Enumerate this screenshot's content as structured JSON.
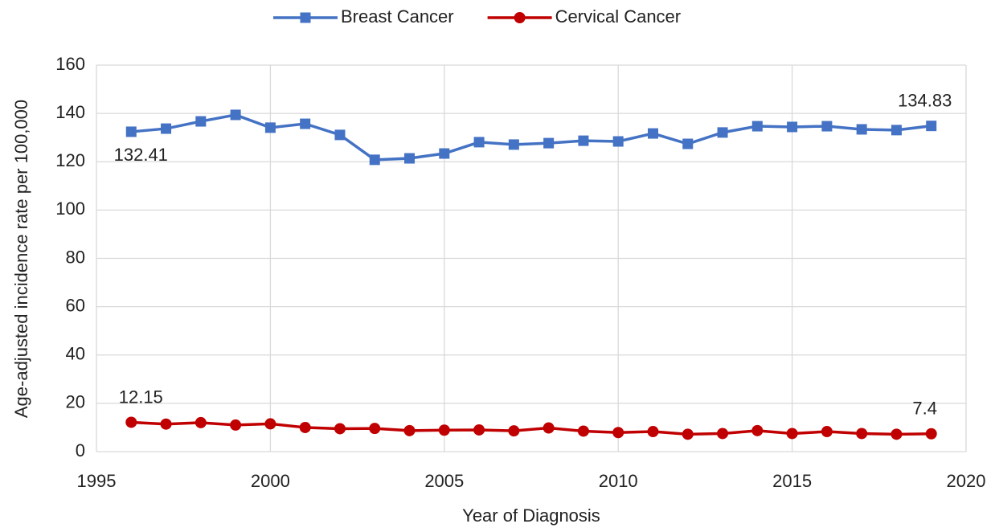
{
  "chart_data": {
    "type": "line",
    "x_label": "Year of Diagnosis",
    "y_label": "Age-adjusted incidence rate per 100,000",
    "x": [
      1996,
      1997,
      1998,
      1999,
      2000,
      2001,
      2002,
      2003,
      2004,
      2005,
      2006,
      2007,
      2008,
      2009,
      2010,
      2011,
      2012,
      2013,
      2014,
      2015,
      2016,
      2017,
      2018,
      2019
    ],
    "series": [
      {
        "name": "Breast Cancer",
        "color": "#4472c4",
        "marker": "square",
        "values": [
          132.41,
          133.7,
          136.7,
          139.4,
          134.1,
          135.7,
          131.1,
          120.8,
          121.4,
          123.4,
          128.1,
          127.1,
          127.7,
          128.7,
          128.4,
          131.7,
          127.4,
          132.1,
          134.7,
          134.4,
          134.7,
          133.4,
          133.1,
          134.83
        ]
      },
      {
        "name": "Cervical Cancer",
        "color": "#c00000",
        "marker": "circle",
        "values": [
          12.15,
          11.4,
          12.0,
          11.0,
          11.5,
          10.0,
          9.5,
          9.6,
          8.7,
          8.9,
          9.0,
          8.6,
          9.8,
          8.5,
          7.9,
          8.3,
          7.2,
          7.5,
          8.7,
          7.5,
          8.3,
          7.5,
          7.2,
          7.4
        ]
      }
    ],
    "xlim": [
      1995,
      2020
    ],
    "xticks": [
      1995,
      2000,
      2005,
      2010,
      2015,
      2020
    ],
    "ylim": [
      0,
      160
    ],
    "yticks": [
      0,
      20,
      40,
      60,
      80,
      100,
      120,
      140,
      160
    ],
    "grid": true,
    "legend": "top"
  }
}
